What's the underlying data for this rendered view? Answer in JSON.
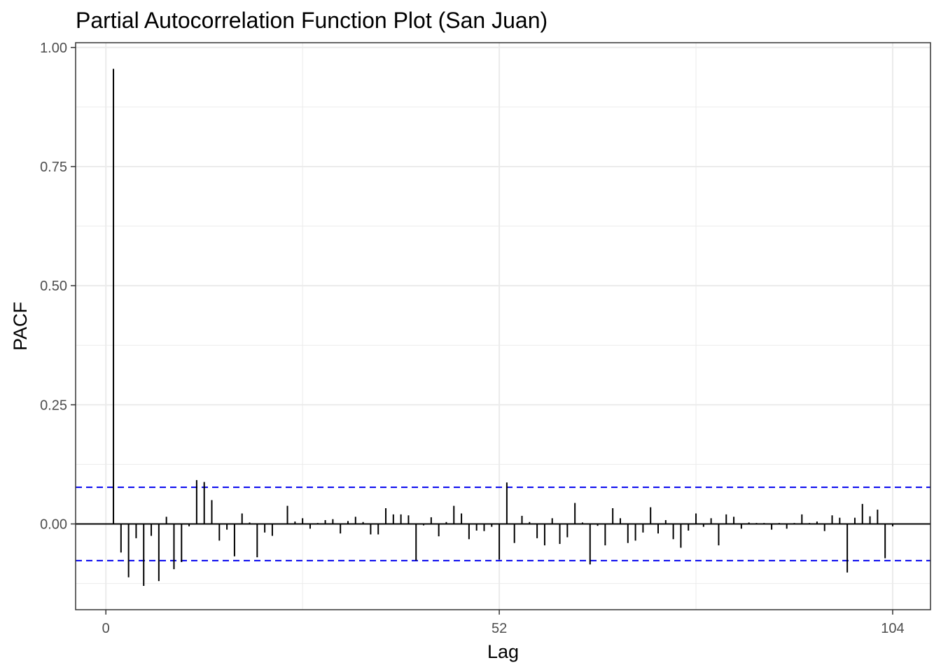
{
  "chart_data": {
    "type": "bar",
    "title": "Partial Autocorrelation Function Plot (San Juan)",
    "xlabel": "Lag",
    "ylabel": "PACF",
    "xlim": [
      -4,
      109
    ],
    "ylim": [
      -0.18,
      1.01
    ],
    "x_ticks": [
      0,
      52,
      104
    ],
    "x_tick_labels": [
      "0",
      "52",
      "104"
    ],
    "y_ticks": [
      0,
      0.25,
      0.5,
      0.75,
      1.0
    ],
    "y_tick_labels": [
      "0.00",
      "0.25",
      "0.50",
      "0.75",
      "1.00"
    ],
    "confidence_limit": 0.077,
    "grid": true,
    "lags": [
      1,
      2,
      3,
      4,
      5,
      6,
      7,
      8,
      9,
      10,
      11,
      12,
      13,
      14,
      15,
      16,
      17,
      18,
      19,
      20,
      21,
      22,
      23,
      24,
      25,
      26,
      27,
      28,
      29,
      30,
      31,
      32,
      33,
      34,
      35,
      36,
      37,
      38,
      39,
      40,
      41,
      42,
      43,
      44,
      45,
      46,
      47,
      48,
      49,
      50,
      51,
      52,
      53,
      54,
      55,
      56,
      57,
      58,
      59,
      60,
      61,
      62,
      63,
      64,
      65,
      66,
      67,
      68,
      69,
      70,
      71,
      72,
      73,
      74,
      75,
      76,
      77,
      78,
      79,
      80,
      81,
      82,
      83,
      84,
      85,
      86,
      87,
      88,
      89,
      90,
      91,
      92,
      93,
      94,
      95,
      96,
      97,
      98,
      99,
      100,
      101,
      102,
      103,
      104
    ],
    "values": [
      0.955,
      -0.06,
      -0.112,
      -0.03,
      -0.13,
      -0.025,
      -0.12,
      0.015,
      -0.095,
      -0.08,
      -0.005,
      0.092,
      0.088,
      0.05,
      -0.035,
      -0.012,
      -0.068,
      0.022,
      0.003,
      -0.07,
      -0.018,
      -0.025,
      0.0,
      0.038,
      0.005,
      0.012,
      -0.01,
      0.002,
      0.008,
      0.01,
      -0.02,
      0.006,
      0.015,
      0.004,
      -0.022,
      -0.022,
      0.033,
      0.02,
      0.02,
      0.018,
      -0.077,
      -0.003,
      0.014,
      -0.026,
      0.004,
      0.038,
      0.022,
      -0.032,
      -0.014,
      -0.015,
      -0.006,
      -0.075,
      0.087,
      -0.04,
      0.017,
      0.004,
      -0.03,
      -0.045,
      0.012,
      -0.042,
      -0.028,
      0.044,
      0.003,
      -0.085,
      -0.004,
      -0.045,
      0.033,
      0.012,
      -0.04,
      -0.035,
      -0.018,
      0.035,
      -0.02,
      0.008,
      -0.032,
      -0.05,
      -0.014,
      0.022,
      -0.006,
      0.012,
      -0.045,
      0.02,
      0.015,
      -0.01,
      0.003,
      0.002,
      0.002,
      -0.012,
      0.002,
      -0.01,
      0.002,
      0.02,
      0.002,
      0.005,
      -0.015,
      0.018,
      0.013,
      -0.102,
      0.013,
      0.042,
      0.016,
      0.03,
      -0.072,
      -0.005
    ]
  }
}
